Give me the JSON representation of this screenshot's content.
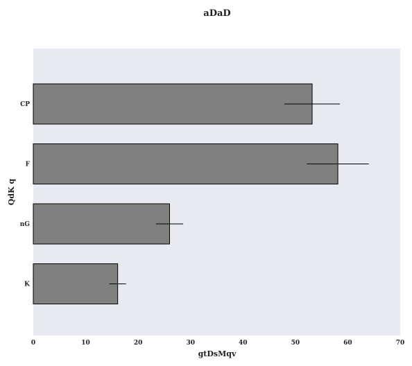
{
  "chart_data": {
    "type": "bar",
    "orientation": "horizontal",
    "title": "aDaD",
    "xlabel": "gtDsMqv",
    "ylabel": "QdK q",
    "categories": [
      "CP",
      "F",
      "nG",
      "K"
    ],
    "values": [
      53.2,
      58.1,
      26.0,
      16.1
    ],
    "errors": [
      5.3,
      5.9,
      2.6,
      1.6
    ],
    "xlim": [
      0,
      70
    ],
    "xticks": [
      0,
      10,
      20,
      30,
      40,
      50,
      60,
      70
    ],
    "grid": false,
    "legend": "none",
    "colors": {
      "plot_background": "#e9e9f1",
      "bar_fill": "#808080",
      "bar_edge": "#000000",
      "error_bar": "#000000"
    }
  }
}
